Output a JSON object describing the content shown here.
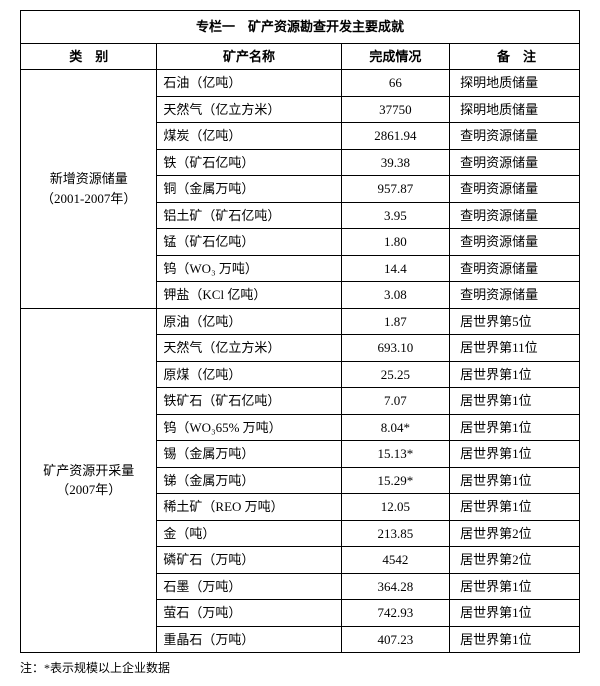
{
  "title": "专栏一　矿产资源勘查开发主要成就",
  "headers": {
    "category": "类　别",
    "name": "矿产名称",
    "completion": "完成情况",
    "remark": "备　注"
  },
  "sec1": {
    "category_line1": "新增资源储量",
    "category_line2": "（2001-2007年）",
    "rows": [
      {
        "name": "石油（亿吨）",
        "val": "66",
        "rem": "探明地质储量"
      },
      {
        "name": "天然气（亿立方米）",
        "val": "37750",
        "rem": "探明地质储量"
      },
      {
        "name": "煤炭（亿吨）",
        "val": "2861.94",
        "rem": "查明资源储量"
      },
      {
        "name": "铁（矿石亿吨）",
        "val": "39.38",
        "rem": "查明资源储量"
      },
      {
        "name": "铜（金属万吨）",
        "val": "957.87",
        "rem": "查明资源储量"
      },
      {
        "name": "铝土矿（矿石亿吨）",
        "val": "3.95",
        "rem": "查明资源储量"
      },
      {
        "name": "锰（矿石亿吨）",
        "val": "1.80",
        "rem": "查明资源储量"
      },
      {
        "name": "钨（WO₃ 万吨）",
        "val": "14.4",
        "rem": "查明资源储量"
      },
      {
        "name": "钾盐（KCl 亿吨）",
        "val": "3.08",
        "rem": "查明资源储量"
      }
    ]
  },
  "sec2": {
    "category_line1": "矿产资源开采量",
    "category_line2": "（2007年）",
    "rows": [
      {
        "name": "原油（亿吨）",
        "val": "1.87",
        "rem": "居世界第5位"
      },
      {
        "name": "天然气（亿立方米）",
        "val": "693.10",
        "rem": "居世界第11位"
      },
      {
        "name": "原煤（亿吨）",
        "val": "25.25",
        "rem": "居世界第1位"
      },
      {
        "name": "铁矿石（矿石亿吨）",
        "val": "7.07",
        "rem": "居世界第1位"
      },
      {
        "name": "钨（WO₃65% 万吨）",
        "val": "8.04*",
        "rem": "居世界第1位"
      },
      {
        "name": "锡（金属万吨）",
        "val": "15.13*",
        "rem": "居世界第1位"
      },
      {
        "name": "锑（金属万吨）",
        "val": "15.29*",
        "rem": "居世界第1位"
      },
      {
        "name": "稀土矿（REO 万吨）",
        "val": "12.05",
        "rem": "居世界第1位"
      },
      {
        "name": "金（吨）",
        "val": "213.85",
        "rem": "居世界第2位"
      },
      {
        "name": "磷矿石（万吨）",
        "val": "4542",
        "rem": "居世界第2位"
      },
      {
        "name": "石墨（万吨）",
        "val": "364.28",
        "rem": "居世界第1位"
      },
      {
        "name": "萤石（万吨）",
        "val": "742.93",
        "rem": "居世界第1位"
      },
      {
        "name": "重晶石（万吨）",
        "val": "407.23",
        "rem": "居世界第1位"
      }
    ]
  },
  "footnote": "注：*表示规模以上企业数据"
}
